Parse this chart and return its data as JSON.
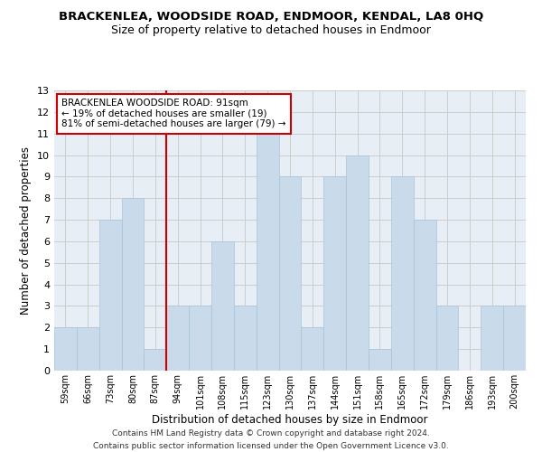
{
  "title": "BRACKENLEA, WOODSIDE ROAD, ENDMOOR, KENDAL, LA8 0HQ",
  "subtitle": "Size of property relative to detached houses in Endmoor",
  "xlabel": "Distribution of detached houses by size in Endmoor",
  "ylabel": "Number of detached properties",
  "categories": [
    "59sqm",
    "66sqm",
    "73sqm",
    "80sqm",
    "87sqm",
    "94sqm",
    "101sqm",
    "108sqm",
    "115sqm",
    "123sqm",
    "130sqm",
    "137sqm",
    "144sqm",
    "151sqm",
    "158sqm",
    "165sqm",
    "172sqm",
    "179sqm",
    "186sqm",
    "193sqm",
    "200sqm"
  ],
  "values": [
    2,
    2,
    7,
    8,
    1,
    3,
    3,
    6,
    3,
    11,
    9,
    2,
    9,
    10,
    1,
    9,
    7,
    3,
    0,
    3,
    3
  ],
  "bar_color": "#c9daea",
  "bar_edge_color": "#a8c4d8",
  "annotation_box_color": "#ffffff",
  "annotation_box_edge": "#cc0000",
  "subject_vline_color": "#cc0000",
  "subject_label": "BRACKENLEA WOODSIDE ROAD: 91sqm",
  "subject_line1": "← 19% of detached houses are smaller (19)",
  "subject_line2": "81% of semi-detached houses are larger (79) →",
  "ylim": [
    0,
    13
  ],
  "yticks": [
    0,
    1,
    2,
    3,
    4,
    5,
    6,
    7,
    8,
    9,
    10,
    11,
    12,
    13
  ],
  "grid_color": "#cccccc",
  "background_color": "#e8eef6",
  "fig_background": "#ffffff",
  "footer1": "Contains HM Land Registry data © Crown copyright and database right 2024.",
  "footer2": "Contains public sector information licensed under the Open Government Licence v3.0.",
  "title_fontsize": 9.5,
  "subtitle_fontsize": 9,
  "annotation_fontsize": 7.5,
  "axis_label_fontsize": 8.5,
  "tick_fontsize": 7,
  "footer_fontsize": 6.5
}
